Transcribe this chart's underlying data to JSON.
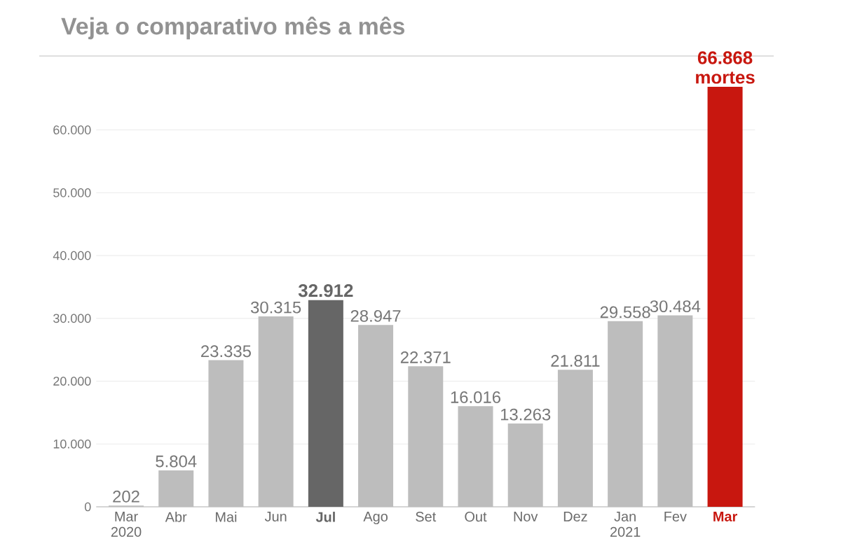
{
  "chart_data": {
    "type": "bar",
    "title": "Veja o comparativo mês a mês",
    "categories": [
      "Mar 2020",
      "Abr",
      "Mai",
      "Jun",
      "Jul",
      "Ago",
      "Set",
      "Out",
      "Nov",
      "Dez",
      "Jan 2021",
      "Fev",
      "Mar"
    ],
    "values": [
      202,
      5804,
      23335,
      30315,
      32912,
      28947,
      22371,
      16016,
      13263,
      21811,
      29558,
      30484,
      66868
    ],
    "value_labels": [
      "202",
      "5.804",
      "23.335",
      "30.315",
      "32.912",
      "28.947",
      "22.371",
      "16.016",
      "13.263",
      "21.811",
      "29.558",
      "30.484",
      "66.868 mortes"
    ],
    "colors": [
      "#bdbdbd",
      "#bdbdbd",
      "#bdbdbd",
      "#bdbdbd",
      "#666666",
      "#bdbdbd",
      "#bdbdbd",
      "#bdbdbd",
      "#bdbdbd",
      "#bdbdbd",
      "#bdbdbd",
      "#bdbdbd",
      "#c8170f"
    ],
    "ylim": [
      0,
      66868
    ],
    "yticks": [
      {
        "value": 0,
        "label": "0"
      },
      {
        "value": 10000,
        "label": "10.000"
      },
      {
        "value": 20000,
        "label": "20.000"
      },
      {
        "value": 30000,
        "label": "30.000"
      },
      {
        "value": 40000,
        "label": "40.000"
      },
      {
        "value": 50000,
        "label": "50.000"
      },
      {
        "value": 60000,
        "label": "60.000"
      }
    ],
    "grid": "y"
  }
}
